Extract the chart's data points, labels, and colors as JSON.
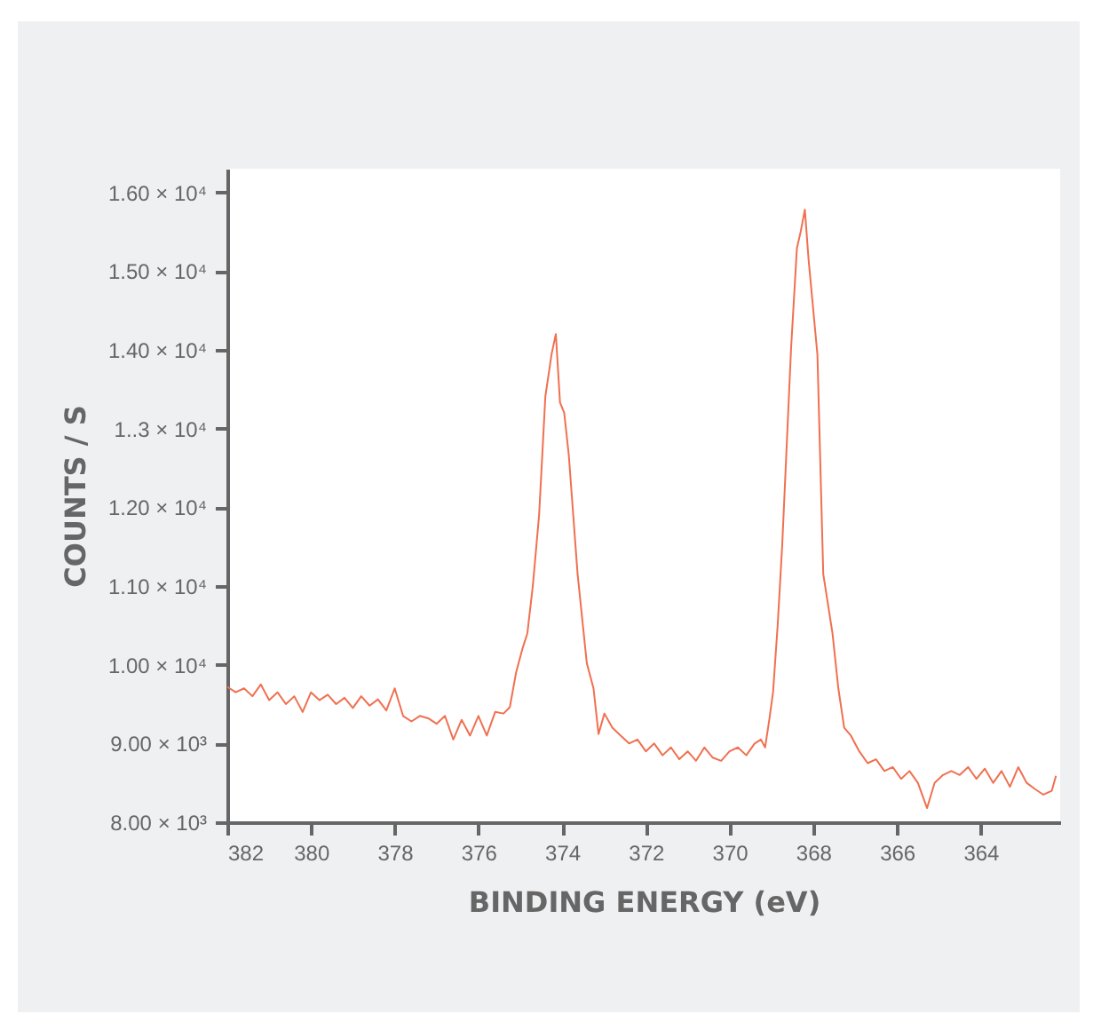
{
  "chart_data": {
    "type": "line",
    "xlabel": "BINDING ENERGY (eV)",
    "ylabel": "COUNTS / S",
    "xlim": [
      382,
      362.1
    ],
    "xticks": [
      382,
      380,
      378,
      376,
      374,
      372,
      370,
      368,
      366,
      364
    ],
    "ylim": [
      8000,
      16300
    ],
    "yticks": [
      {
        "value": 8000,
        "label": "8.00 × 10³"
      },
      {
        "value": 9000,
        "label": "9.00 × 10³"
      },
      {
        "value": 10000,
        "label": "1.00 × 10⁴"
      },
      {
        "value": 11000,
        "label": "1.10 × 10⁴"
      },
      {
        "value": 12000,
        "label": "1.20 × 10⁴"
      },
      {
        "value": 13000,
        "label": "1..3 × 10⁴"
      },
      {
        "value": 14000,
        "label": "1.40 × 10⁴"
      },
      {
        "value": 15000,
        "label": "1.50 × 10⁴"
      },
      {
        "value": 16000,
        "label": "1.60 × 10⁴"
      }
    ],
    "grid": false,
    "marker": "none",
    "line_style": "solid",
    "x": [
      382.0,
      381.8,
      381.6,
      381.4,
      381.2,
      381.0,
      380.8,
      380.6,
      380.4,
      380.2,
      380.0,
      379.8,
      379.6,
      379.4,
      379.2,
      379.0,
      378.8,
      378.6,
      378.4,
      378.2,
      378.0,
      377.8,
      377.6,
      377.4,
      377.2,
      377.0,
      376.8,
      376.6,
      376.4,
      376.2,
      376.0,
      375.8,
      375.6,
      375.4,
      375.25,
      375.1,
      374.95,
      374.83,
      374.7,
      374.55,
      374.4,
      374.25,
      374.15,
      374.05,
      373.95,
      373.84,
      373.63,
      373.41,
      373.25,
      373.13,
      372.99,
      372.8,
      372.6,
      372.4,
      372.2,
      372.0,
      371.8,
      371.6,
      371.4,
      371.2,
      371.0,
      370.8,
      370.6,
      370.4,
      370.2,
      370.0,
      369.8,
      369.6,
      369.4,
      369.25,
      369.15,
      369.05,
      368.96,
      368.85,
      368.74,
      368.53,
      368.39,
      368.3,
      368.2,
      368.11,
      367.9,
      367.76,
      367.54,
      367.4,
      367.26,
      367.1,
      366.9,
      366.7,
      366.5,
      366.3,
      366.1,
      365.9,
      365.7,
      365.5,
      365.28,
      365.1,
      364.9,
      364.7,
      364.5,
      364.3,
      364.1,
      363.9,
      363.7,
      363.5,
      363.3,
      363.1,
      362.9,
      362.7,
      362.5,
      362.3,
      362.2
    ],
    "series": [
      {
        "color": "#f07050",
        "values": [
          9720,
          9650,
          9700,
          9600,
          9750,
          9550,
          9650,
          9500,
          9600,
          9400,
          9650,
          9550,
          9620,
          9500,
          9580,
          9450,
          9600,
          9480,
          9560,
          9420,
          9700,
          9350,
          9280,
          9350,
          9320,
          9250,
          9350,
          9050,
          9300,
          9100,
          9350,
          9100,
          9400,
          9380,
          9460,
          9900,
          10200,
          10400,
          11000,
          11900,
          13410,
          13950,
          14200,
          13330,
          13200,
          12660,
          11150,
          10020,
          9700,
          9120,
          9380,
          9200,
          9100,
          9000,
          9050,
          8900,
          9000,
          8850,
          8950,
          8800,
          8900,
          8780,
          8950,
          8820,
          8780,
          8900,
          8950,
          8850,
          9000,
          9050,
          8950,
          9300,
          9650,
          10500,
          11530,
          14010,
          15290,
          15500,
          15780,
          15140,
          13940,
          11150,
          10400,
          9700,
          9200,
          9100,
          8900,
          8750,
          8800,
          8650,
          8700,
          8550,
          8650,
          8500,
          8180,
          8500,
          8600,
          8650,
          8600,
          8700,
          8550,
          8680,
          8500,
          8650,
          8450,
          8700,
          8500,
          8420,
          8350,
          8400,
          8590
        ]
      }
    ]
  }
}
